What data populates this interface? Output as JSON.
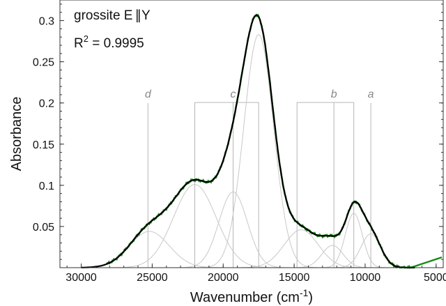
{
  "chart_data": {
    "type": "line",
    "title": "",
    "annotation_title": "grossite E",
    "annotation_title_suffix": "Y",
    "r2_prefix": "R",
    "r2_sup": "2",
    "r2_value": " = 0.9995",
    "xlabel": "Wavenumber (cm",
    "xlabel_sup": "-1",
    "xlabel_suffix": ")",
    "ylabel": "Absorbance",
    "xlim": [
      31500,
      4500
    ],
    "ylim": [
      0,
      0.325
    ],
    "x_reversed": true,
    "grid": false,
    "x_ticks": [
      30000,
      25000,
      20000,
      15000,
      10000,
      5000
    ],
    "x_tick_labels": [
      "30000",
      "25000",
      "20000",
      "15000",
      "10000",
      "5000"
    ],
    "y_ticks": [
      0.05,
      0.1,
      0.15,
      0.2,
      0.25,
      0.3
    ],
    "y_tick_labels": [
      "0.05",
      "0.1",
      "0.15",
      "0.2",
      "0.25",
      "0.3"
    ],
    "components": [
      {
        "center": 25200,
        "height": 0.044,
        "width": 1400
      },
      {
        "center": 22000,
        "height": 0.101,
        "width": 1500
      },
      {
        "center": 19300,
        "height": 0.092,
        "width": 1000
      },
      {
        "center": 17500,
        "height": 0.283,
        "width": 1050
      },
      {
        "center": 14500,
        "height": 0.046,
        "width": 1200
      },
      {
        "center": 12300,
        "height": 0.027,
        "width": 750
      },
      {
        "center": 10800,
        "height": 0.066,
        "width": 600
      },
      {
        "center": 9600,
        "height": 0.041,
        "width": 700
      }
    ],
    "series": [
      {
        "name": "",
        "color": "#1a8a1a",
        "role": "measured"
      },
      {
        "name": "",
        "color": "#000000",
        "role": "fit"
      },
      {
        "name": "",
        "color": "#c8c8c8",
        "role": "components"
      }
    ],
    "band_labels": [
      {
        "label": "d",
        "positions": [
          25300
        ]
      },
      {
        "label": "c",
        "positions": [
          22000,
          19300,
          17500
        ]
      },
      {
        "label": "b",
        "positions": [
          14800,
          12200,
          10800
        ]
      },
      {
        "label": "a",
        "positions": [
          9600
        ]
      }
    ]
  }
}
